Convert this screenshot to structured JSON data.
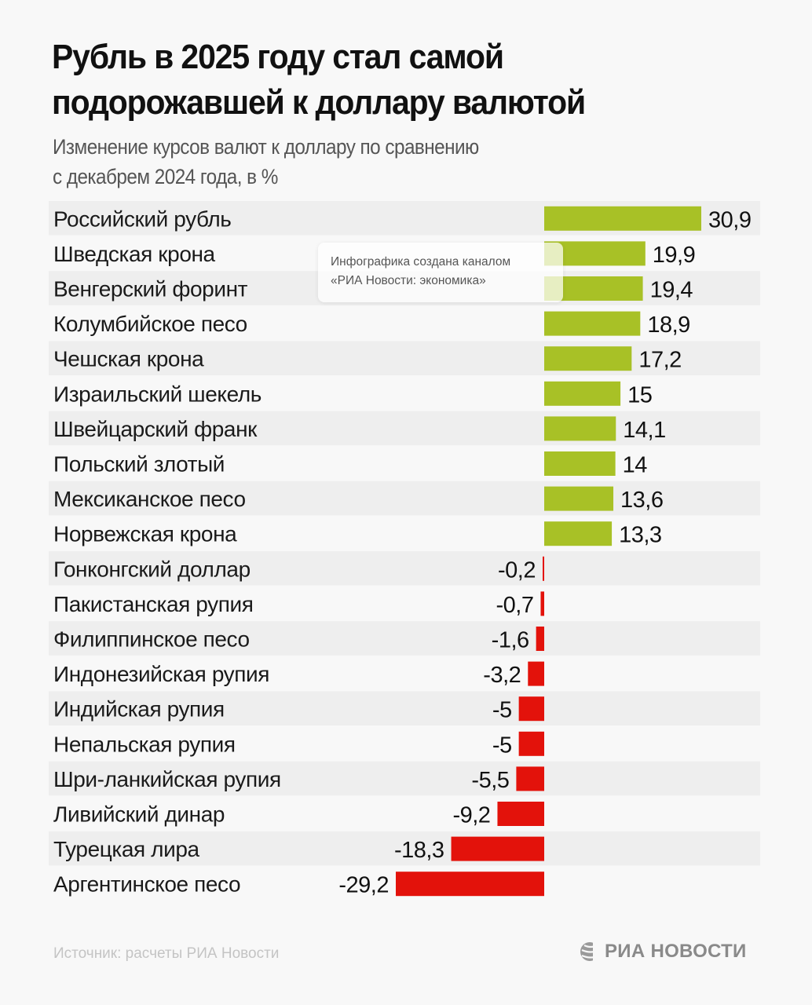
{
  "header": {
    "title_line1": "Рубль в 2025 году стал самой",
    "title_line2": "подорожавшей к доллару валютой",
    "subtitle_line1": "Изменение курсов валют к доллару по сравнению",
    "subtitle_line2": "с декабрем 2024 года, в %"
  },
  "watermark": {
    "line1": "Инфографика создана каналом",
    "line2": "«РИА Новости: экономика»"
  },
  "footer": {
    "source": "Источник: расчеты РИА Новости",
    "logo_text": "РИА НОВОСТИ",
    "logo_icon": "ria-globe-icon"
  },
  "colors": {
    "positive": "#a8c126",
    "negative": "#e3120b",
    "stripe": "#eeeeee",
    "background": "#f8f8f8"
  },
  "chart_data": {
    "type": "bar",
    "orientation": "horizontal",
    "title": "Рубль в 2025 году стал самой подорожавшей к доллару валютой",
    "subtitle": "Изменение курсов валют к доллару по сравнению с декабрем 2024 года, в %",
    "xlabel": "",
    "ylabel": "",
    "xlim": [
      -29.2,
      30.9
    ],
    "grid": false,
    "legend": "none",
    "categories": [
      "Российский рубль",
      "Шведская крона",
      "Венгерский форинт",
      "Колумбийское песо",
      "Чешская крона",
      "Израильский шекель",
      "Швейцарский франк",
      "Польский злотый",
      "Мексиканское песо",
      "Норвежская крона",
      "Гонконгский доллар",
      "Пакистанская рупия",
      "Филиппинское песо",
      "Индонезийская рупия",
      "Индийская рупия",
      "Непальская рупия",
      "Шри-ланкийская рупия",
      "Ливийский динар",
      "Турецкая лира",
      "Аргентинское песо"
    ],
    "values": [
      30.9,
      19.9,
      19.4,
      18.9,
      17.2,
      15,
      14.1,
      14,
      13.6,
      13.3,
      -0.2,
      -0.7,
      -1.6,
      -3.2,
      -5,
      -5,
      -5.5,
      -9.2,
      -18.3,
      -29.2
    ],
    "value_labels": [
      "30,9",
      "19,9",
      "19,4",
      "18,9",
      "17,2",
      "15",
      "14,1",
      "14",
      "13,6",
      "13,3",
      "-0,2",
      "-0,7",
      "-1,6",
      "-3,2",
      "-5",
      "-5",
      "-5,5",
      "-9,2",
      "-18,3",
      "-29,2"
    ]
  }
}
